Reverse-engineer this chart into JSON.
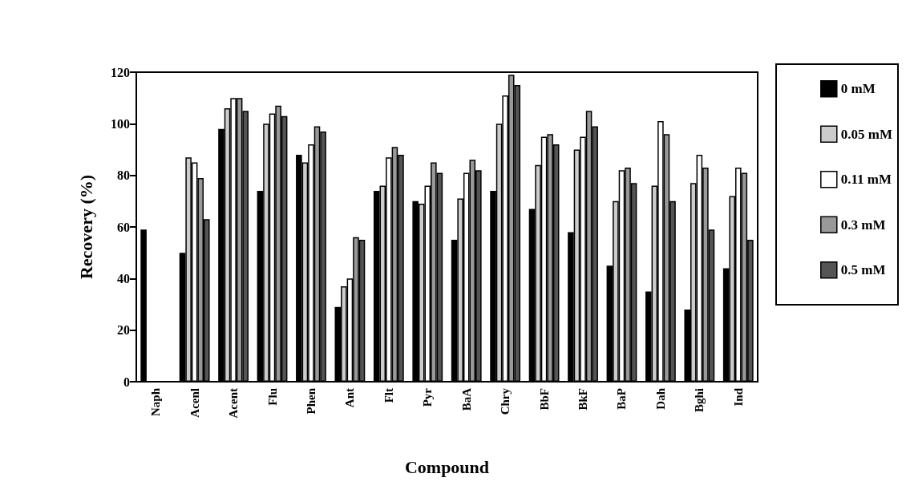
{
  "chart_data": {
    "type": "bar",
    "xlabel": "Compound",
    "ylabel": "Recovery (%)",
    "categories": [
      "Naph",
      "Acenl",
      "Acent",
      "Flu",
      "Phen",
      "Ant",
      "Flt",
      "Pyr",
      "BaA",
      "Chry",
      "BbF",
      "BkF",
      "BaP",
      "Dah",
      "Bghi",
      "Ind"
    ],
    "series": [
      {
        "name": "0 mM",
        "color": "#000000",
        "values": [
          59,
          50,
          98,
          74,
          88,
          29,
          74,
          70,
          55,
          74,
          67,
          58,
          45,
          35,
          28,
          44
        ]
      },
      {
        "name": "0.05 mM",
        "color": "#cccccc",
        "values": [
          null,
          87,
          106,
          100,
          85,
          37,
          76,
          69,
          71,
          100,
          84,
          90,
          70,
          76,
          77,
          72
        ]
      },
      {
        "name": "0.11 mM",
        "color": "#ffffff",
        "values": [
          null,
          85,
          110,
          104,
          92,
          40,
          87,
          76,
          81,
          111,
          95,
          95,
          82,
          101,
          88,
          83
        ]
      },
      {
        "name": "0.3 mM",
        "color": "#999999",
        "values": [
          null,
          79,
          110,
          107,
          99,
          56,
          91,
          85,
          86,
          119,
          96,
          105,
          83,
          96,
          83,
          81
        ]
      },
      {
        "name": "0.5 mM",
        "color": "#555555",
        "values": [
          null,
          63,
          105,
          103,
          97,
          55,
          88,
          81,
          82,
          115,
          92,
          99,
          77,
          70,
          59,
          55
        ]
      }
    ],
    "ylim": [
      0,
      120
    ],
    "yticks": [
      0,
      20,
      40,
      60,
      80,
      100,
      120
    ],
    "grid": false,
    "legend": "right"
  }
}
